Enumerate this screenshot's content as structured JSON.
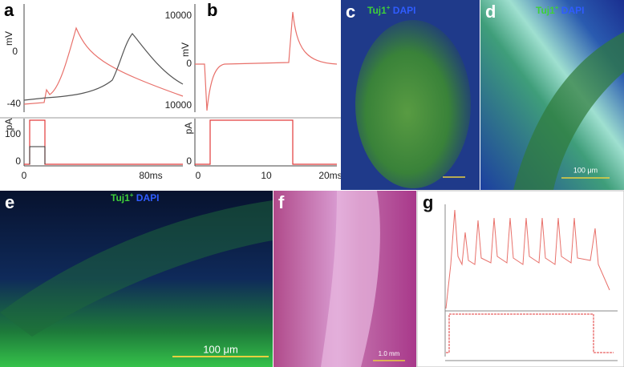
{
  "panels": {
    "a": {
      "label": "a",
      "y_unit": "mV",
      "y_ticks": [
        "0",
        "-40"
      ],
      "current_unit": "pA",
      "current_ticks": [
        "100",
        "0"
      ],
      "x_ticks": [
        "0",
        "80ms"
      ]
    },
    "b": {
      "label": "b",
      "y_unit": "mV",
      "y_ticks": [
        "10000",
        "0",
        "10000"
      ],
      "current_unit": "pA",
      "current_ticks": [
        "0"
      ],
      "x_ticks": [
        "0",
        "10",
        "20ms"
      ]
    },
    "c": {
      "label": "c",
      "stain_green": "Tuj1",
      "stain_sup": "+",
      "stain_blue": "DAPI"
    },
    "d": {
      "label": "d",
      "stain_green": "Tuj1",
      "stain_sup": "+",
      "stain_blue": "DAPI",
      "scale": "100 μm"
    },
    "e": {
      "label": "e",
      "stain_green": "Tuj1",
      "stain_sup": "+",
      "stain_blue": "DAPI",
      "scale": "100 μm"
    },
    "f": {
      "label": "f",
      "scale": "1.0 mm"
    },
    "g": {
      "label": "g"
    }
  }
}
